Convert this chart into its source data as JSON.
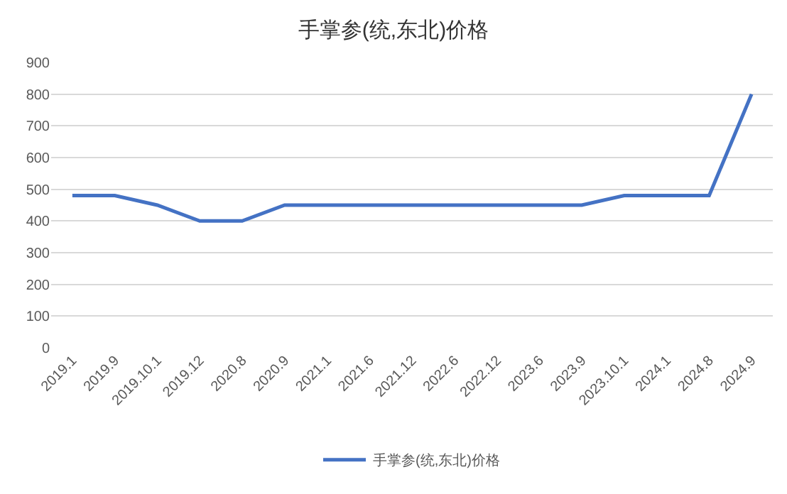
{
  "chart_data": {
    "type": "line",
    "title": "手掌参(统,东北)价格",
    "categories": [
      "2019.1",
      "2019.9",
      "2019.10.1",
      "2019.12",
      "2020.8",
      "2020.9",
      "2021.1",
      "2021.6",
      "2021.12",
      "2022.6",
      "2022.12",
      "2023.6",
      "2023.9",
      "2023.10.1",
      "2024.1",
      "2024.8",
      "2024.9"
    ],
    "series": [
      {
        "name": "手掌参(统,东北)价格",
        "color": "#4472c4",
        "values": [
          480,
          480,
          450,
          400,
          400,
          450,
          450,
          450,
          450,
          450,
          450,
          450,
          450,
          480,
          480,
          480,
          800
        ]
      }
    ],
    "ylim": [
      0,
      900
    ],
    "yticks": [
      0,
      100,
      200,
      300,
      400,
      500,
      600,
      700,
      800,
      900
    ],
    "grid": "y",
    "legend": "bottom",
    "marker": "none",
    "line_style": "solid"
  }
}
